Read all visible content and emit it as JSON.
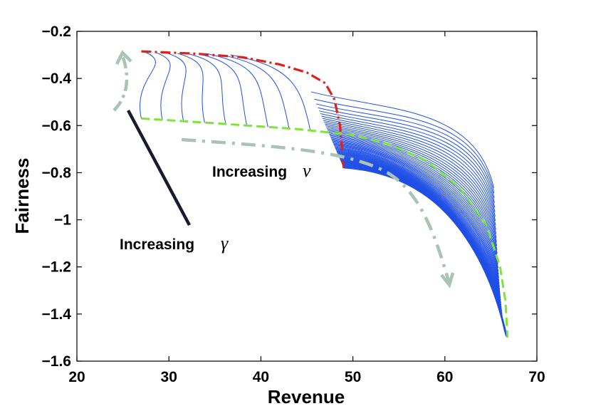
{
  "chart_data": {
    "type": "line",
    "xlabel": "Revenue",
    "ylabel": "Fairness",
    "xlim": [
      20,
      70
    ],
    "ylim": [
      -1.6,
      -0.2
    ],
    "x_ticks": [
      20,
      30,
      40,
      50,
      60,
      70
    ],
    "y_ticks": [
      -0.2,
      -0.4,
      -0.6,
      -0.8,
      -1,
      -1.2,
      -1.4,
      -1.6
    ],
    "x_tick_labels": [
      "20",
      "30",
      "40",
      "50",
      "60",
      "70"
    ],
    "y_tick_labels": [
      "−0.2",
      "−0.4",
      "−0.6",
      "−0.8",
      "−1",
      "−1.2",
      "−1.4",
      "−1.6"
    ],
    "grid": false,
    "colors": {
      "curves": "#1f4fe6",
      "red_envelope": "#e0211b",
      "green_envelope": "#7ee43a",
      "arrows": "#a9c3b4",
      "pointer": "#1a1a2e"
    },
    "curve_family": {
      "description_free": true,
      "count": 70,
      "start_top": [
        27.5,
        -0.29
      ],
      "start_bottom": [
        27,
        -0.57
      ],
      "start_knee": [
        46,
        -0.62
      ],
      "end_top": [
        49,
        -0.78
      ],
      "end_top_high": [
        44.5,
        -0.37
      ],
      "end_bottom": [
        66.8,
        -1.5
      ]
    },
    "red_envelope": [
      [
        27,
        -0.285
      ],
      [
        33,
        -0.295
      ],
      [
        38,
        -0.31
      ],
      [
        42,
        -0.34
      ],
      [
        45,
        -0.375
      ],
      [
        47,
        -0.42
      ],
      [
        48,
        -0.49
      ],
      [
        48.6,
        -0.6
      ],
      [
        49,
        -0.78
      ]
    ],
    "green_envelope": [
      [
        27,
        -0.57
      ],
      [
        35,
        -0.59
      ],
      [
        44,
        -0.615
      ],
      [
        50,
        -0.64
      ],
      [
        54,
        -0.68
      ],
      [
        58,
        -0.75
      ],
      [
        61.5,
        -0.86
      ],
      [
        64.5,
        -1.02
      ],
      [
        66,
        -1.2
      ],
      [
        66.6,
        -1.35
      ],
      [
        66.8,
        -1.5
      ]
    ],
    "annotations": {
      "nu": {
        "text": "Increasing",
        "symbol": "ν"
      },
      "gamma": {
        "text": "Increasing",
        "symbol": "γ"
      }
    }
  }
}
